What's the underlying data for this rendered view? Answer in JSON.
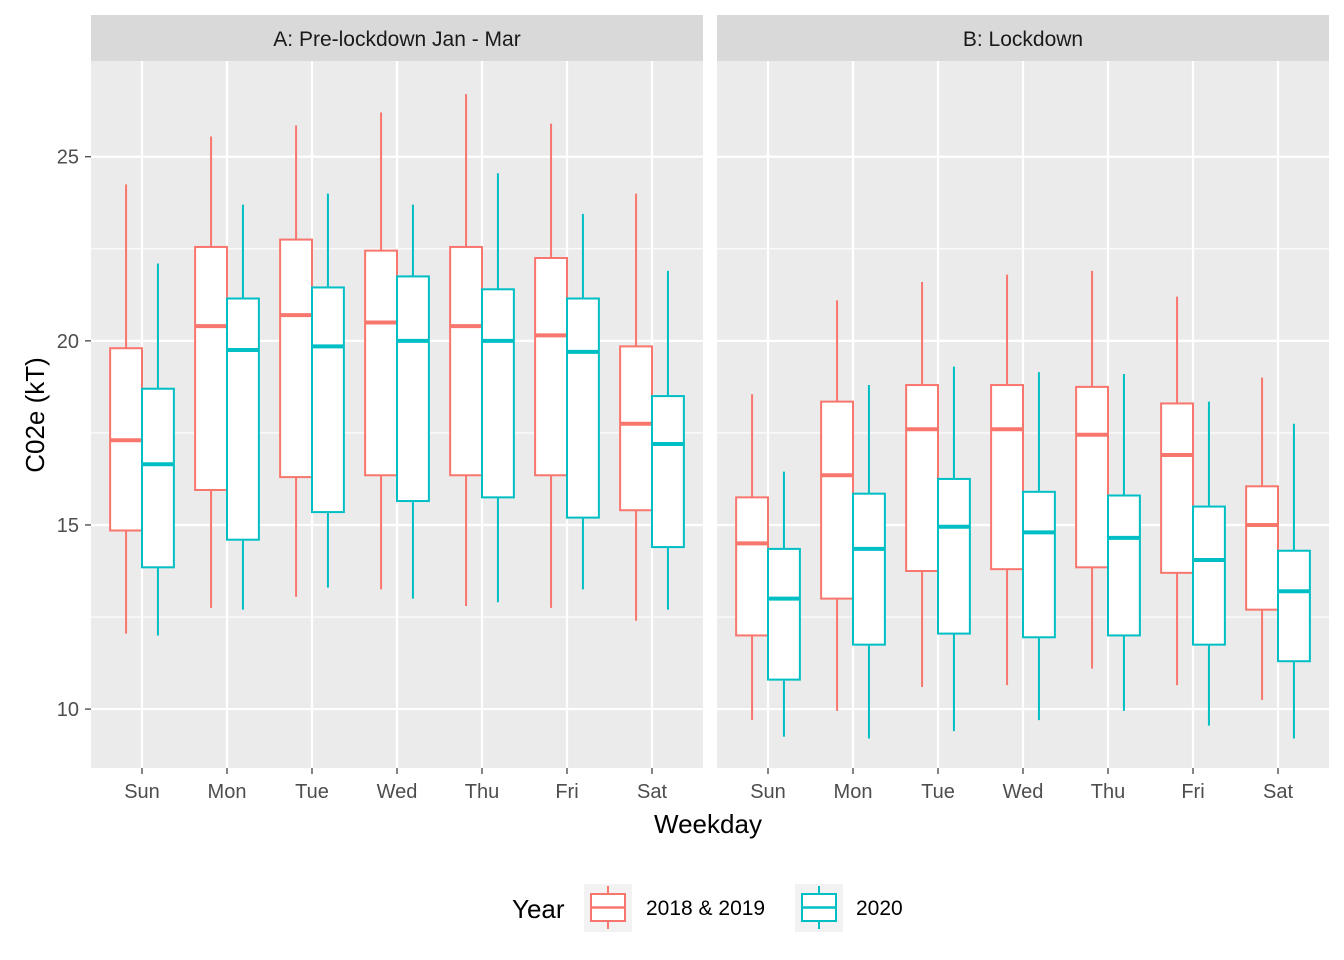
{
  "chart_data": {
    "type": "boxplot",
    "ylabel": "C02e (kT)",
    "xlabel": "Weekday",
    "categories": [
      "Sun",
      "Mon",
      "Tue",
      "Wed",
      "Thu",
      "Fri",
      "Sat"
    ],
    "yticks": [
      10,
      15,
      20,
      25
    ],
    "ylim": [
      8.4,
      27.6
    ],
    "grid": true,
    "legend": {
      "title": "Year",
      "placement": "bottom",
      "entries": [
        {
          "name": "2018 & 2019",
          "color": "#F8766D"
        },
        {
          "name": "2020",
          "color": "#00BFC4"
        }
      ]
    },
    "panels": [
      {
        "title": "A: Pre-lockdown Jan - Mar",
        "series": [
          {
            "name": "2018 & 2019",
            "color": "#F8766D",
            "boxes": [
              {
                "min": 12.05,
                "q1": 14.85,
                "median": 17.3,
                "q3": 19.8,
                "max": 24.25
              },
              {
                "min": 12.75,
                "q1": 15.95,
                "median": 20.4,
                "q3": 22.55,
                "max": 25.55
              },
              {
                "min": 13.05,
                "q1": 16.3,
                "median": 20.7,
                "q3": 22.75,
                "max": 25.85
              },
              {
                "min": 13.25,
                "q1": 16.35,
                "median": 20.5,
                "q3": 22.45,
                "max": 26.2
              },
              {
                "min": 12.8,
                "q1": 16.35,
                "median": 20.4,
                "q3": 22.55,
                "max": 26.7
              },
              {
                "min": 12.75,
                "q1": 16.35,
                "median": 20.15,
                "q3": 22.25,
                "max": 25.9
              },
              {
                "min": 12.4,
                "q1": 15.4,
                "median": 17.75,
                "q3": 19.85,
                "max": 24.0
              }
            ]
          },
          {
            "name": "2020",
            "color": "#00BFC4",
            "boxes": [
              {
                "min": 12.0,
                "q1": 13.85,
                "median": 16.65,
                "q3": 18.7,
                "max": 22.1
              },
              {
                "min": 12.7,
                "q1": 14.6,
                "median": 19.75,
                "q3": 21.15,
                "max": 23.7
              },
              {
                "min": 13.3,
                "q1": 15.35,
                "median": 19.85,
                "q3": 21.45,
                "max": 24.0
              },
              {
                "min": 13.0,
                "q1": 15.65,
                "median": 20.0,
                "q3": 21.75,
                "max": 23.7
              },
              {
                "min": 12.9,
                "q1": 15.75,
                "median": 20.0,
                "q3": 21.4,
                "max": 24.55
              },
              {
                "min": 13.25,
                "q1": 15.2,
                "median": 19.7,
                "q3": 21.15,
                "max": 23.45
              },
              {
                "min": 12.7,
                "q1": 14.4,
                "median": 17.2,
                "q3": 18.5,
                "max": 21.9
              }
            ]
          }
        ]
      },
      {
        "title": "B: Lockdown",
        "series": [
          {
            "name": "2018 & 2019",
            "color": "#F8766D",
            "boxes": [
              {
                "min": 9.7,
                "q1": 12.0,
                "median": 14.5,
                "q3": 15.75,
                "max": 18.55
              },
              {
                "min": 9.95,
                "q1": 13.0,
                "median": 16.35,
                "q3": 18.35,
                "max": 21.1
              },
              {
                "min": 10.6,
                "q1": 13.75,
                "median": 17.6,
                "q3": 18.8,
                "max": 21.6
              },
              {
                "min": 10.65,
                "q1": 13.8,
                "median": 17.6,
                "q3": 18.8,
                "max": 21.8
              },
              {
                "min": 11.1,
                "q1": 13.85,
                "median": 17.45,
                "q3": 18.75,
                "max": 21.9
              },
              {
                "min": 10.65,
                "q1": 13.7,
                "median": 16.9,
                "q3": 18.3,
                "max": 21.2
              },
              {
                "min": 10.25,
                "q1": 12.7,
                "median": 15.0,
                "q3": 16.05,
                "max": 19.0
              }
            ]
          },
          {
            "name": "2020",
            "color": "#00BFC4",
            "boxes": [
              {
                "min": 9.25,
                "q1": 10.8,
                "median": 13.0,
                "q3": 14.35,
                "max": 16.45
              },
              {
                "min": 9.2,
                "q1": 11.75,
                "median": 14.35,
                "q3": 15.85,
                "max": 18.8
              },
              {
                "min": 9.4,
                "q1": 12.05,
                "median": 14.95,
                "q3": 16.25,
                "max": 19.3
              },
              {
                "min": 9.7,
                "q1": 11.95,
                "median": 14.8,
                "q3": 15.9,
                "max": 19.15
              },
              {
                "min": 9.95,
                "q1": 12.0,
                "median": 14.65,
                "q3": 15.8,
                "max": 19.1
              },
              {
                "min": 9.55,
                "q1": 11.75,
                "median": 14.05,
                "q3": 15.5,
                "max": 18.35
              },
              {
                "min": 9.2,
                "q1": 11.3,
                "median": 13.2,
                "q3": 14.3,
                "max": 17.75
              }
            ]
          }
        ]
      }
    ]
  }
}
